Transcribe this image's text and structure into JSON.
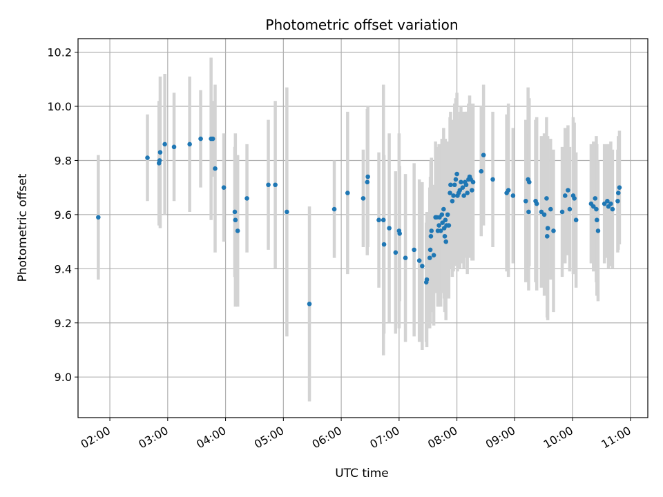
{
  "chart_data": {
    "type": "scatter",
    "title": "Photometric offset variation",
    "xlabel": "UTC time",
    "ylabel": "Photometric offset",
    "x_unit": "hours (UTC)",
    "xlim": [
      1.45,
      11.3
    ],
    "ylim": [
      8.85,
      10.25
    ],
    "x_ticks": [
      {
        "value": 2,
        "label": "02:00"
      },
      {
        "value": 3,
        "label": "03:00"
      },
      {
        "value": 4,
        "label": "04:00"
      },
      {
        "value": 5,
        "label": "05:00"
      },
      {
        "value": 6,
        "label": "06:00"
      },
      {
        "value": 7,
        "label": "07:00"
      },
      {
        "value": 8,
        "label": "08:00"
      },
      {
        "value": 9,
        "label": "09:00"
      },
      {
        "value": 10,
        "label": "10:00"
      },
      {
        "value": 11,
        "label": "11:00"
      }
    ],
    "y_ticks": [
      {
        "value": 9.0,
        "label": "9.0"
      },
      {
        "value": 9.2,
        "label": "9.2"
      },
      {
        "value": 9.4,
        "label": "9.4"
      },
      {
        "value": 9.6,
        "label": "9.6"
      },
      {
        "value": 9.8,
        "label": "9.8"
      },
      {
        "value": 10.0,
        "label": "10.0"
      },
      {
        "value": 10.2,
        "label": "10.2"
      }
    ],
    "grid": true,
    "marker_color": "#1f77b4",
    "errorbar_color": "#d3d3d3",
    "points": [
      [
        1.8,
        9.59,
        0.23
      ],
      [
        2.65,
        9.81,
        0.16
      ],
      [
        2.85,
        9.79,
        0.23
      ],
      [
        2.86,
        9.8,
        0.22
      ],
      [
        2.87,
        9.83,
        0.28
      ],
      [
        2.95,
        9.86,
        0.26
      ],
      [
        3.11,
        9.85,
        0.2
      ],
      [
        3.38,
        9.86,
        0.25
      ],
      [
        3.57,
        9.88,
        0.18
      ],
      [
        3.75,
        9.88,
        0.3
      ],
      [
        3.78,
        9.88,
        0.14
      ],
      [
        3.82,
        9.77,
        0.31
      ],
      [
        3.97,
        9.7,
        0.2
      ],
      [
        4.16,
        9.61,
        0.24
      ],
      [
        4.17,
        9.58,
        0.32
      ],
      [
        4.21,
        9.54,
        0.28
      ],
      [
        4.37,
        9.66,
        0.2
      ],
      [
        4.74,
        9.71,
        0.24
      ],
      [
        4.86,
        9.71,
        0.31
      ],
      [
        5.06,
        9.61,
        0.46
      ],
      [
        5.45,
        9.27,
        0.36
      ],
      [
        5.88,
        9.62,
        0.18
      ],
      [
        6.11,
        9.68,
        0.3
      ],
      [
        6.38,
        9.66,
        0.18
      ],
      [
        6.45,
        9.72,
        0.27
      ],
      [
        6.46,
        9.74,
        0.26
      ],
      [
        6.65,
        9.58,
        0.25
      ],
      [
        6.73,
        9.58,
        0.5
      ],
      [
        6.74,
        9.49,
        0.33
      ],
      [
        6.83,
        9.55,
        0.35
      ],
      [
        6.94,
        9.46,
        0.3
      ],
      [
        7.0,
        9.54,
        0.36
      ],
      [
        7.01,
        9.53,
        0.25
      ],
      [
        7.11,
        9.44,
        0.31
      ],
      [
        7.26,
        9.47,
        0.32
      ],
      [
        7.35,
        9.43,
        0.3
      ],
      [
        7.4,
        9.41,
        0.31
      ],
      [
        7.47,
        9.35,
        0.22
      ],
      [
        7.48,
        9.36,
        0.25
      ],
      [
        7.53,
        9.44,
        0.26
      ],
      [
        7.54,
        9.47,
        0.27
      ],
      [
        7.55,
        9.52,
        0.28
      ],
      [
        7.56,
        9.54,
        0.27
      ],
      [
        7.6,
        9.45,
        0.26
      ],
      [
        7.63,
        9.59,
        0.28
      ],
      [
        7.65,
        9.59,
        0.26
      ],
      [
        7.67,
        9.54,
        0.28
      ],
      [
        7.69,
        9.56,
        0.3
      ],
      [
        7.7,
        9.59,
        0.27
      ],
      [
        7.72,
        9.54,
        0.28
      ],
      [
        7.74,
        9.6,
        0.28
      ],
      [
        7.75,
        9.57,
        0.26
      ],
      [
        7.77,
        9.62,
        0.3
      ],
      [
        7.78,
        9.55,
        0.26
      ],
      [
        7.79,
        9.52,
        0.28
      ],
      [
        7.8,
        9.58,
        0.3
      ],
      [
        7.81,
        9.5,
        0.29
      ],
      [
        7.82,
        9.56,
        0.27
      ],
      [
        7.84,
        9.6,
        0.27
      ],
      [
        7.86,
        9.56,
        0.27
      ],
      [
        7.88,
        9.68,
        0.28
      ],
      [
        7.89,
        9.71,
        0.27
      ],
      [
        7.92,
        9.65,
        0.28
      ],
      [
        7.94,
        9.67,
        0.28
      ],
      [
        7.96,
        9.71,
        0.3
      ],
      [
        7.98,
        9.73,
        0.3
      ],
      [
        8.0,
        9.75,
        0.3
      ],
      [
        8.01,
        9.67,
        0.28
      ],
      [
        8.03,
        9.68,
        0.26
      ],
      [
        8.05,
        9.69,
        0.29
      ],
      [
        8.07,
        9.72,
        0.28
      ],
      [
        8.1,
        9.7,
        0.28
      ],
      [
        8.12,
        9.67,
        0.27
      ],
      [
        8.14,
        9.72,
        0.26
      ],
      [
        8.16,
        9.71,
        0.27
      ],
      [
        8.18,
        9.68,
        0.3
      ],
      [
        8.2,
        9.73,
        0.28
      ],
      [
        8.22,
        9.74,
        0.3
      ],
      [
        8.24,
        9.73,
        0.28
      ],
      [
        8.26,
        9.69,
        0.26
      ],
      [
        8.28,
        9.72,
        0.29
      ],
      [
        8.42,
        9.76,
        0.24
      ],
      [
        8.46,
        9.82,
        0.26
      ],
      [
        8.62,
        9.73,
        0.25
      ],
      [
        8.86,
        9.68,
        0.29
      ],
      [
        8.89,
        9.69,
        0.32
      ],
      [
        8.97,
        9.67,
        0.25
      ],
      [
        9.19,
        9.65,
        0.3
      ],
      [
        9.23,
        9.73,
        0.34
      ],
      [
        9.24,
        9.61,
        0.29
      ],
      [
        9.25,
        9.72,
        0.31
      ],
      [
        9.36,
        9.65,
        0.3
      ],
      [
        9.38,
        9.64,
        0.32
      ],
      [
        9.46,
        9.61,
        0.28
      ],
      [
        9.51,
        9.6,
        0.3
      ],
      [
        9.55,
        9.66,
        0.3
      ],
      [
        9.56,
        9.52,
        0.3
      ],
      [
        9.57,
        9.55,
        0.34
      ],
      [
        9.62,
        9.62,
        0.26
      ],
      [
        9.67,
        9.54,
        0.3
      ],
      [
        9.82,
        9.61,
        0.24
      ],
      [
        9.87,
        9.67,
        0.25
      ],
      [
        9.92,
        9.69,
        0.24
      ],
      [
        9.95,
        9.62,
        0.23
      ],
      [
        10.01,
        9.67,
        0.29
      ],
      [
        10.03,
        9.66,
        0.28
      ],
      [
        10.06,
        9.58,
        0.25
      ],
      [
        10.32,
        9.64,
        0.22
      ],
      [
        10.36,
        9.63,
        0.24
      ],
      [
        10.39,
        9.66,
        0.21
      ],
      [
        10.41,
        9.62,
        0.27
      ],
      [
        10.42,
        9.58,
        0.28
      ],
      [
        10.44,
        9.54,
        0.26
      ],
      [
        10.55,
        9.64,
        0.22
      ],
      [
        10.6,
        9.65,
        0.21
      ],
      [
        10.62,
        9.63,
        0.23
      ],
      [
        10.66,
        9.64,
        0.23
      ],
      [
        10.69,
        9.62,
        0.22
      ],
      [
        10.78,
        9.65,
        0.19
      ],
      [
        10.79,
        9.68,
        0.21
      ],
      [
        10.81,
        9.7,
        0.21
      ]
    ]
  }
}
